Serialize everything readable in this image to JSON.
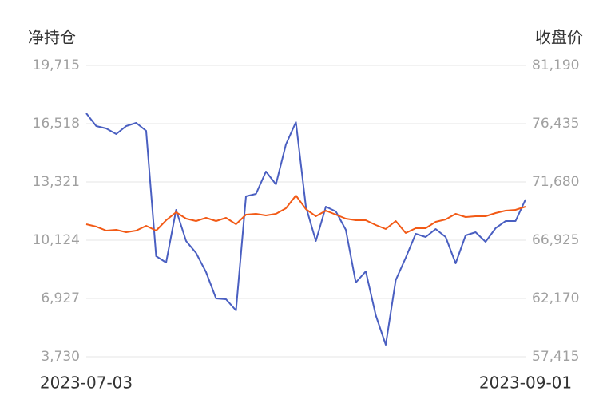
{
  "chart_data": {
    "type": "line",
    "y_label": "净持仓",
    "y2_label": "收盘价",
    "categories": [
      "2023-07-03",
      null,
      null,
      null,
      null,
      null,
      null,
      null,
      null,
      null,
      null,
      null,
      null,
      null,
      null,
      null,
      null,
      null,
      null,
      null,
      null,
      null,
      null,
      null,
      null,
      null,
      null,
      null,
      null,
      null,
      null,
      null,
      null,
      null,
      null,
      null,
      null,
      null,
      null,
      null,
      null,
      null,
      null,
      null,
      "2023-09-01"
    ],
    "ylim": [
      3730,
      19715
    ],
    "yticks": [
      {
        "value": 3730,
        "label": "3,730"
      },
      {
        "value": 6927,
        "label": "6,927"
      },
      {
        "value": 10124,
        "label": "10,124"
      },
      {
        "value": 13321,
        "label": "13,321"
      },
      {
        "value": 16518,
        "label": "16,518"
      },
      {
        "value": 19715,
        "label": "19,715"
      }
    ],
    "y2lim": [
      57415,
      81190
    ],
    "y2ticks": [
      {
        "value": 57415,
        "label": "57,415"
      },
      {
        "value": 62170,
        "label": "62,170"
      },
      {
        "value": 66925,
        "label": "66,925"
      },
      {
        "value": 71680,
        "label": "71,680"
      },
      {
        "value": 76435,
        "label": "76,435"
      },
      {
        "value": 81190,
        "label": "81,190"
      }
    ],
    "grid": true,
    "series": [
      {
        "color": "#4a5fc1",
        "values": [
          17087,
          16387,
          16255,
          15949,
          16387,
          16562,
          16124,
          9248,
          8898,
          11788,
          10080,
          9423,
          8372,
          6927,
          6883,
          6270,
          12533,
          12664,
          13890,
          13190,
          15379,
          16606,
          11963,
          10080,
          11963,
          11701,
          10693,
          7803,
          8416,
          6007,
          4386,
          7934,
          9160,
          10474,
          10299,
          10737,
          10299,
          8854,
          10387,
          10562,
          10036,
          10781,
          11175,
          11175,
          12358
        ]
      },
      {
        "color": "#f25a16",
        "axis": "y2",
        "values": [
          68228,
          68032,
          67707,
          67772,
          67576,
          67707,
          68097,
          67707,
          68553,
          69205,
          68684,
          68488,
          68749,
          68488,
          68749,
          68228,
          69009,
          69075,
          68944,
          69075,
          69530,
          70573,
          69465,
          68879,
          69335,
          69009,
          68684,
          68553,
          68553,
          68163,
          67837,
          68488,
          67511,
          67902,
          67902,
          68423,
          68619,
          69075,
          68814,
          68879,
          68879,
          69140,
          69335,
          69400,
          69661
        ]
      }
    ]
  }
}
